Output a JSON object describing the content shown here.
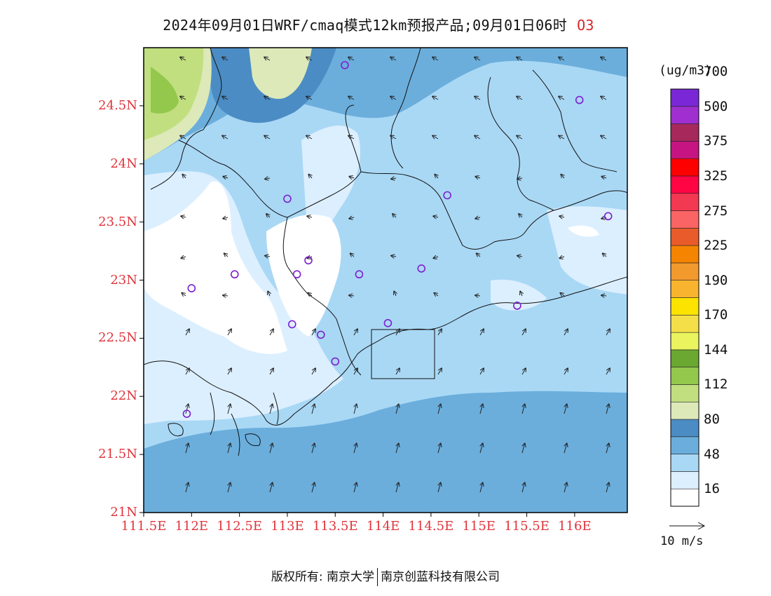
{
  "title": {
    "main": "2024年09月01日WRF/cmaq模式12km预报产品;09月01日06时",
    "species": "O3"
  },
  "axes": {
    "lat_labels": [
      "24.5N",
      "24N",
      "23.5N",
      "23N",
      "22.5N",
      "22N",
      "21.5N",
      "21N"
    ],
    "lat_values": [
      24.5,
      24.0,
      23.5,
      23.0,
      22.5,
      22.0,
      21.5,
      21.0
    ],
    "lon_labels": [
      "111.5E",
      "112E",
      "112.5E",
      "113E",
      "113.5E",
      "114E",
      "114.5E",
      "115E",
      "115.5E",
      "116E"
    ],
    "lon_values": [
      111.5,
      112.0,
      112.5,
      113.0,
      113.5,
      114.0,
      114.5,
      115.0,
      115.5,
      116.0
    ],
    "lon_range": [
      111.5,
      116.55
    ],
    "lat_range": [
      21.0,
      25.0
    ]
  },
  "colorbar": {
    "units": "(ug/m3)",
    "labels": [
      "16",
      "48",
      "80",
      "112",
      "144",
      "170",
      "190",
      "225",
      "275",
      "325",
      "375",
      "500",
      "700"
    ],
    "colors": [
      "#ffffff",
      "#dcefff",
      "#a9d8f5",
      "#6baedc",
      "#4b8cc4",
      "#dde9b9",
      "#c2df80",
      "#93c84c",
      "#6aa832",
      "#eaf45e",
      "#f5df49",
      "#fce300",
      "#f8b42e",
      "#f29a2e",
      "#f58400",
      "#e95b2a",
      "#fa6464",
      "#f33851",
      "#ff0544",
      "#ff0000",
      "#c61582",
      "#a6295c",
      "#9f2fcf",
      "#7a28d6"
    ]
  },
  "wind_reference": {
    "label": "10 m/s"
  },
  "colors": {
    "axis_label": "#e0333a",
    "station_marker": "#7d1fcf"
  },
  "footer": {
    "left": "版权所有: 南京大学",
    "right": "南京创蓝科技有限公司"
  }
}
